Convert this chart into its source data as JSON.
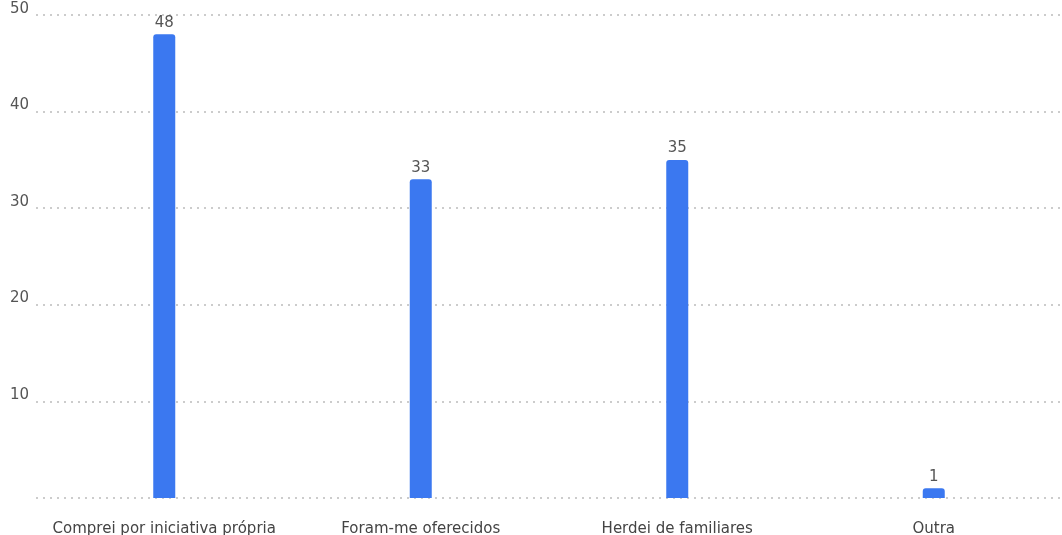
{
  "chart_data": {
    "type": "bar",
    "categories": [
      "Comprei por iniciativa própria",
      "Foram-me oferecidos",
      "Herdei de familiares",
      "Outra"
    ],
    "values": [
      48,
      33,
      35,
      1
    ],
    "color": "#3b78f0",
    "ylim": [
      0,
      50
    ],
    "yticks": [
      {
        "value": 0,
        "label": null
      },
      10,
      20,
      30,
      40,
      50
    ],
    "grid": "y",
    "data_labels": true
  }
}
